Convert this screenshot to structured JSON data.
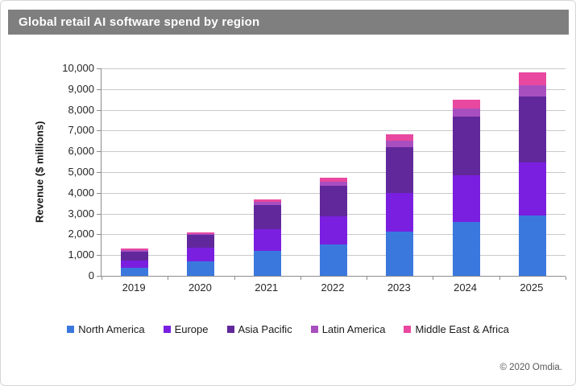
{
  "source_note": "© 2020 Omdia.",
  "colors": {
    "title_bar_bg": "#7f7f7f",
    "title_text": "#ffffff",
    "gridline": "#c9c9c9",
    "axis": "#8c8c8c",
    "tick_label": "#262626"
  },
  "chart_data": {
    "type": "bar",
    "stacked": true,
    "title": "Global retail AI software spend by region",
    "xlabel": "",
    "ylabel": "Revenue ($ millions)",
    "categories": [
      "2019",
      "2020",
      "2021",
      "2022",
      "2023",
      "2024",
      "2025"
    ],
    "series": [
      {
        "name": "North America",
        "color": "#3b78de",
        "values": [
          400,
          690,
          1200,
          1520,
          2130,
          2590,
          2900
        ]
      },
      {
        "name": "Europe",
        "color": "#7a1fe0",
        "values": [
          350,
          650,
          1050,
          1330,
          1880,
          2260,
          2550
        ]
      },
      {
        "name": "Asia Pacific",
        "color": "#61289b",
        "values": [
          430,
          630,
          1150,
          1510,
          2190,
          2840,
          3200
        ]
      },
      {
        "name": "Latin America",
        "color": "#a84fc0",
        "values": [
          60,
          50,
          150,
          180,
          300,
          390,
          540
        ]
      },
      {
        "name": "Middle East & Africa",
        "color": "#e8489f",
        "values": [
          60,
          60,
          150,
          190,
          330,
          420,
          610
        ]
      }
    ],
    "totals": [
      1300,
      2080,
      3700,
      4730,
      6830,
      8500,
      9800
    ],
    "ylim": [
      0,
      10000
    ],
    "ytick_interval": 1000,
    "ytick_labels": [
      "0",
      "1,000",
      "2,000",
      "3,000",
      "4,000",
      "5,000",
      "6,000",
      "7,000",
      "8,000",
      "9,000",
      "10,000"
    ],
    "grid": true,
    "legend_position": "bottom"
  }
}
